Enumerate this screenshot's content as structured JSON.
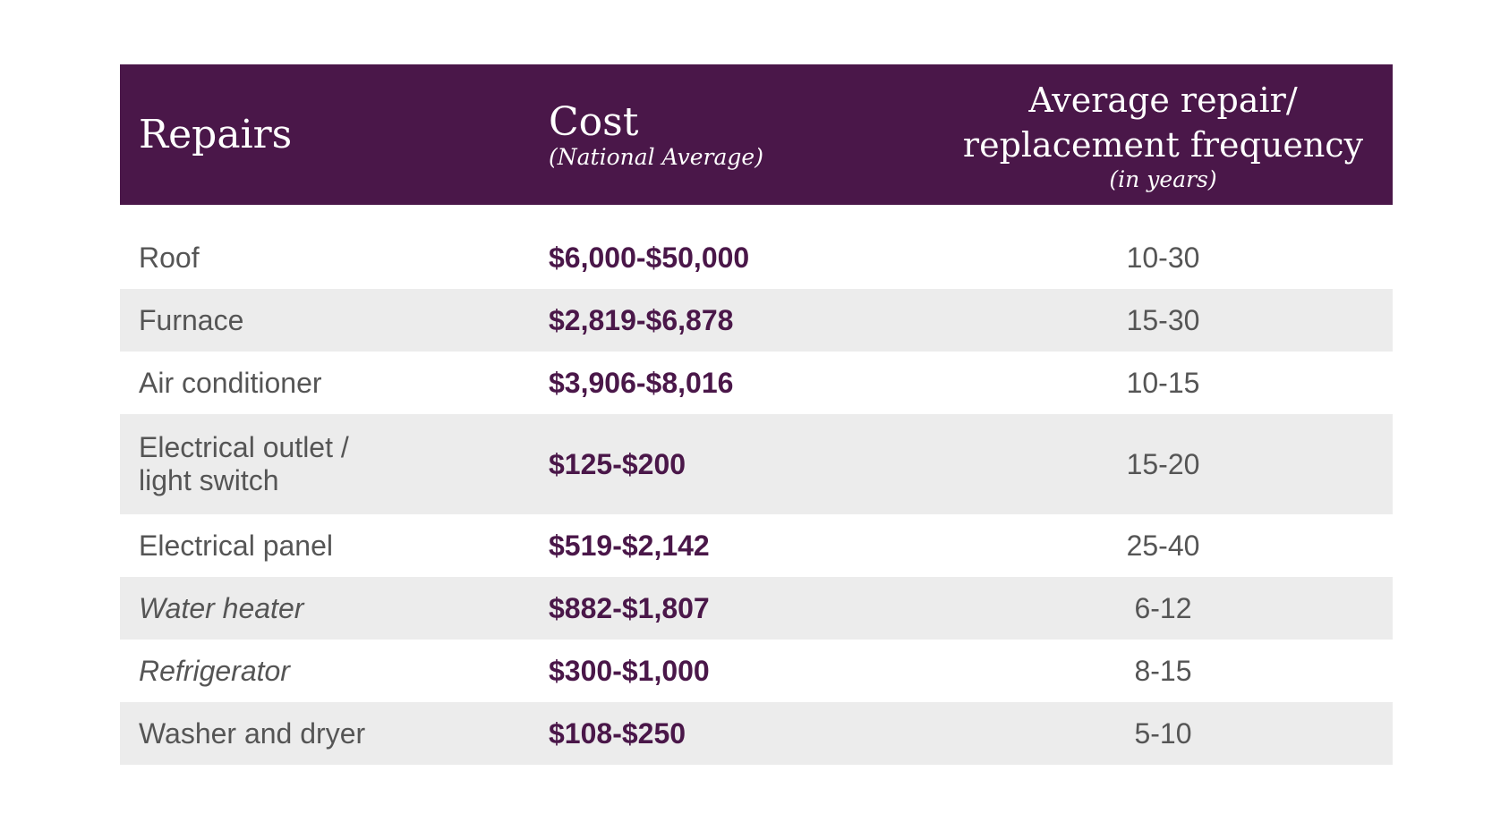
{
  "table": {
    "headers": [
      {
        "title": "Repairs"
      },
      {
        "title": "Cost",
        "subtitle": "(National Average)"
      },
      {
        "title_lines": [
          "Average repair/",
          "replacement frequency"
        ],
        "subtitle": "(in years)"
      }
    ],
    "rows": [
      [
        "Roof",
        "$6,000-$50,000",
        "10-30"
      ],
      [
        "Furnace",
        "$2,819-$6,878",
        "15-30"
      ],
      [
        "Air conditioner",
        "$3,906-$8,016",
        "10-15"
      ],
      [
        "Electrical outlet / light switch",
        "$125-$200",
        "15-20"
      ],
      [
        "Electrical panel",
        "$519-$2,142",
        "25-40"
      ],
      [
        "Water heater",
        "$882-$1,807",
        "6-12"
      ],
      [
        "Refrigerator",
        "$300-$1,000",
        "8-15"
      ],
      [
        "Washer and dryer",
        "$108-$250",
        "5-10"
      ]
    ]
  }
}
